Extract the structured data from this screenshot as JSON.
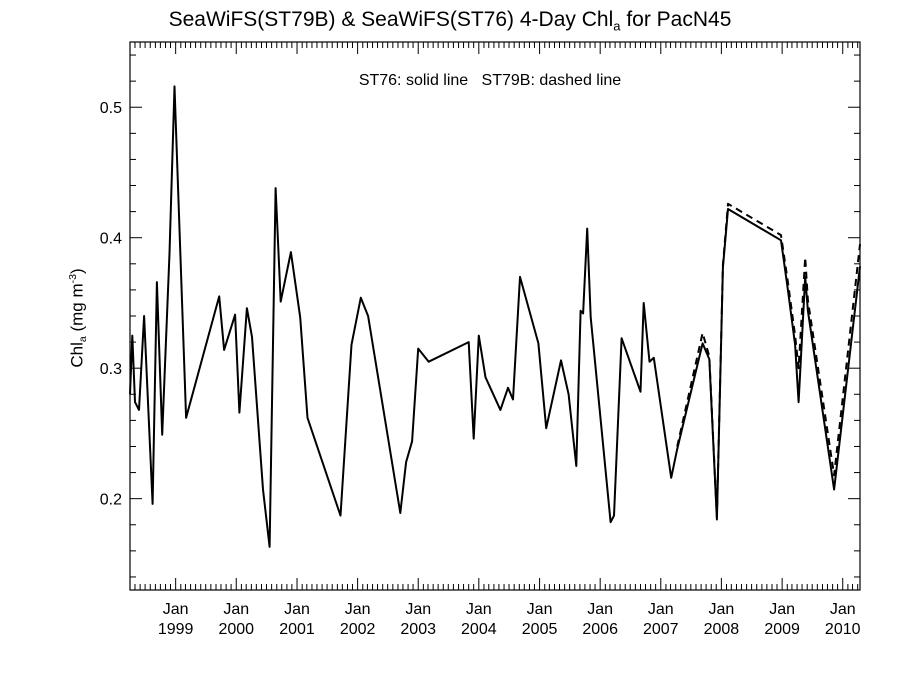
{
  "chart_data": {
    "type": "line",
    "title": {
      "prefix": "SeaWiFS(ST79B) & SeaWiFS(ST76) 4-Day Chl",
      "sub": "a",
      "suffix": " for PacN45"
    },
    "ylabel": {
      "prefix": "Chl",
      "sub": "a",
      "middle": " (mg m",
      "sup": "-3",
      "suffix": ")"
    },
    "annotation": "ST76: solid line   ST79B: dashed line",
    "xlim": [
      "1998-04-01",
      "2010-04-15"
    ],
    "ylim": [
      0.13,
      0.55
    ],
    "yticks": [
      0.2,
      0.3,
      0.4,
      0.5
    ],
    "ytick_labels": [
      "0.2",
      "0.3",
      "0.4",
      "0.5"
    ],
    "xticks": [
      {
        "date": "1999-01-01",
        "month": "Jan",
        "year": "1999"
      },
      {
        "date": "2000-01-01",
        "month": "Jan",
        "year": "2000"
      },
      {
        "date": "2001-01-01",
        "month": "Jan",
        "year": "2001"
      },
      {
        "date": "2002-01-01",
        "month": "Jan",
        "year": "2002"
      },
      {
        "date": "2003-01-01",
        "month": "Jan",
        "year": "2003"
      },
      {
        "date": "2004-01-01",
        "month": "Jan",
        "year": "2004"
      },
      {
        "date": "2005-01-01",
        "month": "Jan",
        "year": "2005"
      },
      {
        "date": "2006-01-01",
        "month": "Jan",
        "year": "2006"
      },
      {
        "date": "2007-01-01",
        "month": "Jan",
        "year": "2007"
      },
      {
        "date": "2008-01-01",
        "month": "Jan",
        "year": "2008"
      },
      {
        "date": "2009-01-01",
        "month": "Jan",
        "year": "2009"
      },
      {
        "date": "2010-01-01",
        "month": "Jan",
        "year": "2010"
      }
    ],
    "grid": false,
    "series": [
      {
        "name": "ST76",
        "style": "solid",
        "color": "#000000",
        "points": [
          [
            "1998-04-01",
            0.28
          ],
          [
            "1998-04-15",
            0.325
          ],
          [
            "1998-05-01",
            0.274
          ],
          [
            "1998-05-25",
            0.268
          ],
          [
            "1998-06-25",
            0.34
          ],
          [
            "1998-08-15",
            0.196
          ],
          [
            "1998-09-10",
            0.366
          ],
          [
            "1998-10-12",
            0.249
          ],
          [
            "1998-11-25",
            0.388
          ],
          [
            "1998-12-25",
            0.516
          ],
          [
            "1999-03-05",
            0.262
          ],
          [
            "1999-09-20",
            0.355
          ],
          [
            "1999-10-20",
            0.314
          ],
          [
            "1999-12-25",
            0.341
          ],
          [
            "2000-01-20",
            0.266
          ],
          [
            "2000-03-05",
            0.346
          ],
          [
            "2000-04-05",
            0.324
          ],
          [
            "2000-06-10",
            0.207
          ],
          [
            "2000-07-20",
            0.163
          ],
          [
            "2000-08-25",
            0.438
          ],
          [
            "2000-09-25",
            0.351
          ],
          [
            "2000-11-25",
            0.389
          ],
          [
            "2001-01-20",
            0.339
          ],
          [
            "2001-03-05",
            0.262
          ],
          [
            "2001-09-20",
            0.187
          ],
          [
            "2001-11-25",
            0.318
          ],
          [
            "2002-01-20",
            0.354
          ],
          [
            "2002-03-05",
            0.34
          ],
          [
            "2002-09-15",
            0.189
          ],
          [
            "2002-10-20",
            0.228
          ],
          [
            "2002-11-25",
            0.244
          ],
          [
            "2003-01-01",
            0.315
          ],
          [
            "2003-03-05",
            0.305
          ],
          [
            "2003-11-01",
            0.32
          ],
          [
            "2003-12-01",
            0.246
          ],
          [
            "2004-01-01",
            0.325
          ],
          [
            "2004-02-10",
            0.293
          ],
          [
            "2004-05-10",
            0.268
          ],
          [
            "2004-06-25",
            0.285
          ],
          [
            "2004-07-25",
            0.276
          ],
          [
            "2004-09-05",
            0.37
          ],
          [
            "2004-12-25",
            0.319
          ],
          [
            "2005-02-10",
            0.254
          ],
          [
            "2005-05-10",
            0.306
          ],
          [
            "2005-06-25",
            0.28
          ],
          [
            "2005-08-10",
            0.225
          ],
          [
            "2005-09-05",
            0.344
          ],
          [
            "2005-09-20",
            0.342
          ],
          [
            "2005-10-15",
            0.407
          ],
          [
            "2005-11-05",
            0.339
          ],
          [
            "2006-03-05",
            0.182
          ],
          [
            "2006-03-25",
            0.187
          ],
          [
            "2006-05-10",
            0.323
          ],
          [
            "2006-09-01",
            0.282
          ],
          [
            "2006-09-20",
            0.35
          ],
          [
            "2006-10-25",
            0.305
          ],
          [
            "2006-11-20",
            0.308
          ],
          [
            "2007-03-05",
            0.216
          ],
          [
            "2007-04-10",
            0.238
          ],
          [
            "2007-09-10",
            0.319
          ],
          [
            "2007-10-20",
            0.307
          ],
          [
            "2007-12-05",
            0.184
          ],
          [
            "2008-01-10",
            0.377
          ],
          [
            "2008-02-10",
            0.422
          ],
          [
            "2008-12-25",
            0.398
          ],
          [
            "2009-02-05",
            0.36
          ],
          [
            "2009-03-20",
            0.318
          ],
          [
            "2009-04-10",
            0.274
          ],
          [
            "2009-05-20",
            0.37
          ],
          [
            "2009-06-05",
            0.344
          ],
          [
            "2009-11-10",
            0.207
          ],
          [
            "2010-04-15",
            0.378
          ]
        ]
      },
      {
        "name": "ST79B",
        "style": "dashed",
        "color": "#000000",
        "points": [
          [
            "2007-04-10",
            0.24
          ],
          [
            "2007-09-10",
            0.327
          ],
          [
            "2007-10-20",
            0.309
          ],
          [
            "2007-12-05",
            0.186
          ],
          [
            "2008-01-10",
            0.379
          ],
          [
            "2008-02-10",
            0.426
          ],
          [
            "2008-12-25",
            0.402
          ],
          [
            "2009-02-05",
            0.366
          ],
          [
            "2009-03-20",
            0.325
          ],
          [
            "2009-04-10",
            0.3
          ],
          [
            "2009-05-20",
            0.385
          ],
          [
            "2009-06-05",
            0.352
          ],
          [
            "2009-11-10",
            0.218
          ],
          [
            "2010-04-15",
            0.395
          ]
        ]
      }
    ]
  }
}
